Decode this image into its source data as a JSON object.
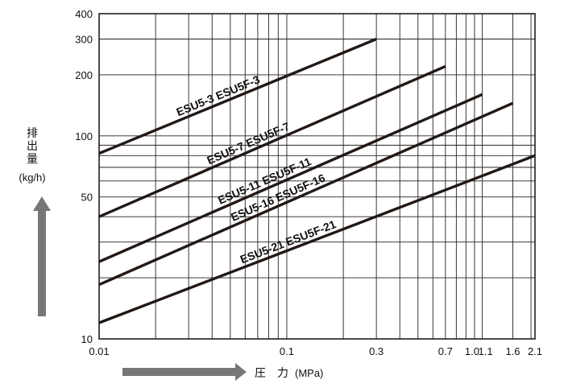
{
  "chart_data": {
    "type": "line",
    "x_scale": "log",
    "y_scale": "log",
    "xlim": [
      0.01,
      2.1
    ],
    "ylim": [
      10,
      400
    ],
    "grid": true,
    "xlabel": "圧　力",
    "xunit": "(MPa)",
    "ylabel": [
      "排",
      "出",
      "量"
    ],
    "yunit": "(kg/h)",
    "x_ticks": [
      {
        "value": 0.01,
        "label": "0.01"
      },
      {
        "value": 0.1,
        "label": "0.1"
      },
      {
        "value": 0.3,
        "label": "0.3"
      },
      {
        "value": 0.7,
        "label": "0.7"
      },
      {
        "value": 1.0,
        "label": "1.0"
      },
      {
        "value": 1.1,
        "label": "1.1"
      },
      {
        "value": 1.6,
        "label": "1.6"
      },
      {
        "value": 2.1,
        "label": "2.1"
      }
    ],
    "y_ticks": [
      {
        "value": 10,
        "label": "10"
      },
      {
        "value": 50,
        "label": "50"
      },
      {
        "value": 100,
        "label": "100"
      },
      {
        "value": 200,
        "label": "200"
      },
      {
        "value": 300,
        "label": "300"
      },
      {
        "value": 400,
        "label": "400"
      }
    ],
    "series": [
      {
        "name": "ESU5-3  ESU5F-3",
        "x": [
          0.01,
          0.3
        ],
        "y": [
          82,
          300
        ]
      },
      {
        "name": "ESU5-7  ESU5F-7",
        "x": [
          0.01,
          0.7
        ],
        "y": [
          40,
          220
        ]
      },
      {
        "name": "ESU5-11  ESU5F-11",
        "x": [
          0.01,
          1.1
        ],
        "y": [
          24,
          160
        ]
      },
      {
        "name": "ESU5-16  ESU5F-16",
        "x": [
          0.01,
          1.6
        ],
        "y": [
          18.5,
          145
        ]
      },
      {
        "name": "ESU5-21  ESU5F-21",
        "x": [
          0.01,
          2.1
        ],
        "y": [
          12,
          80
        ]
      }
    ]
  }
}
